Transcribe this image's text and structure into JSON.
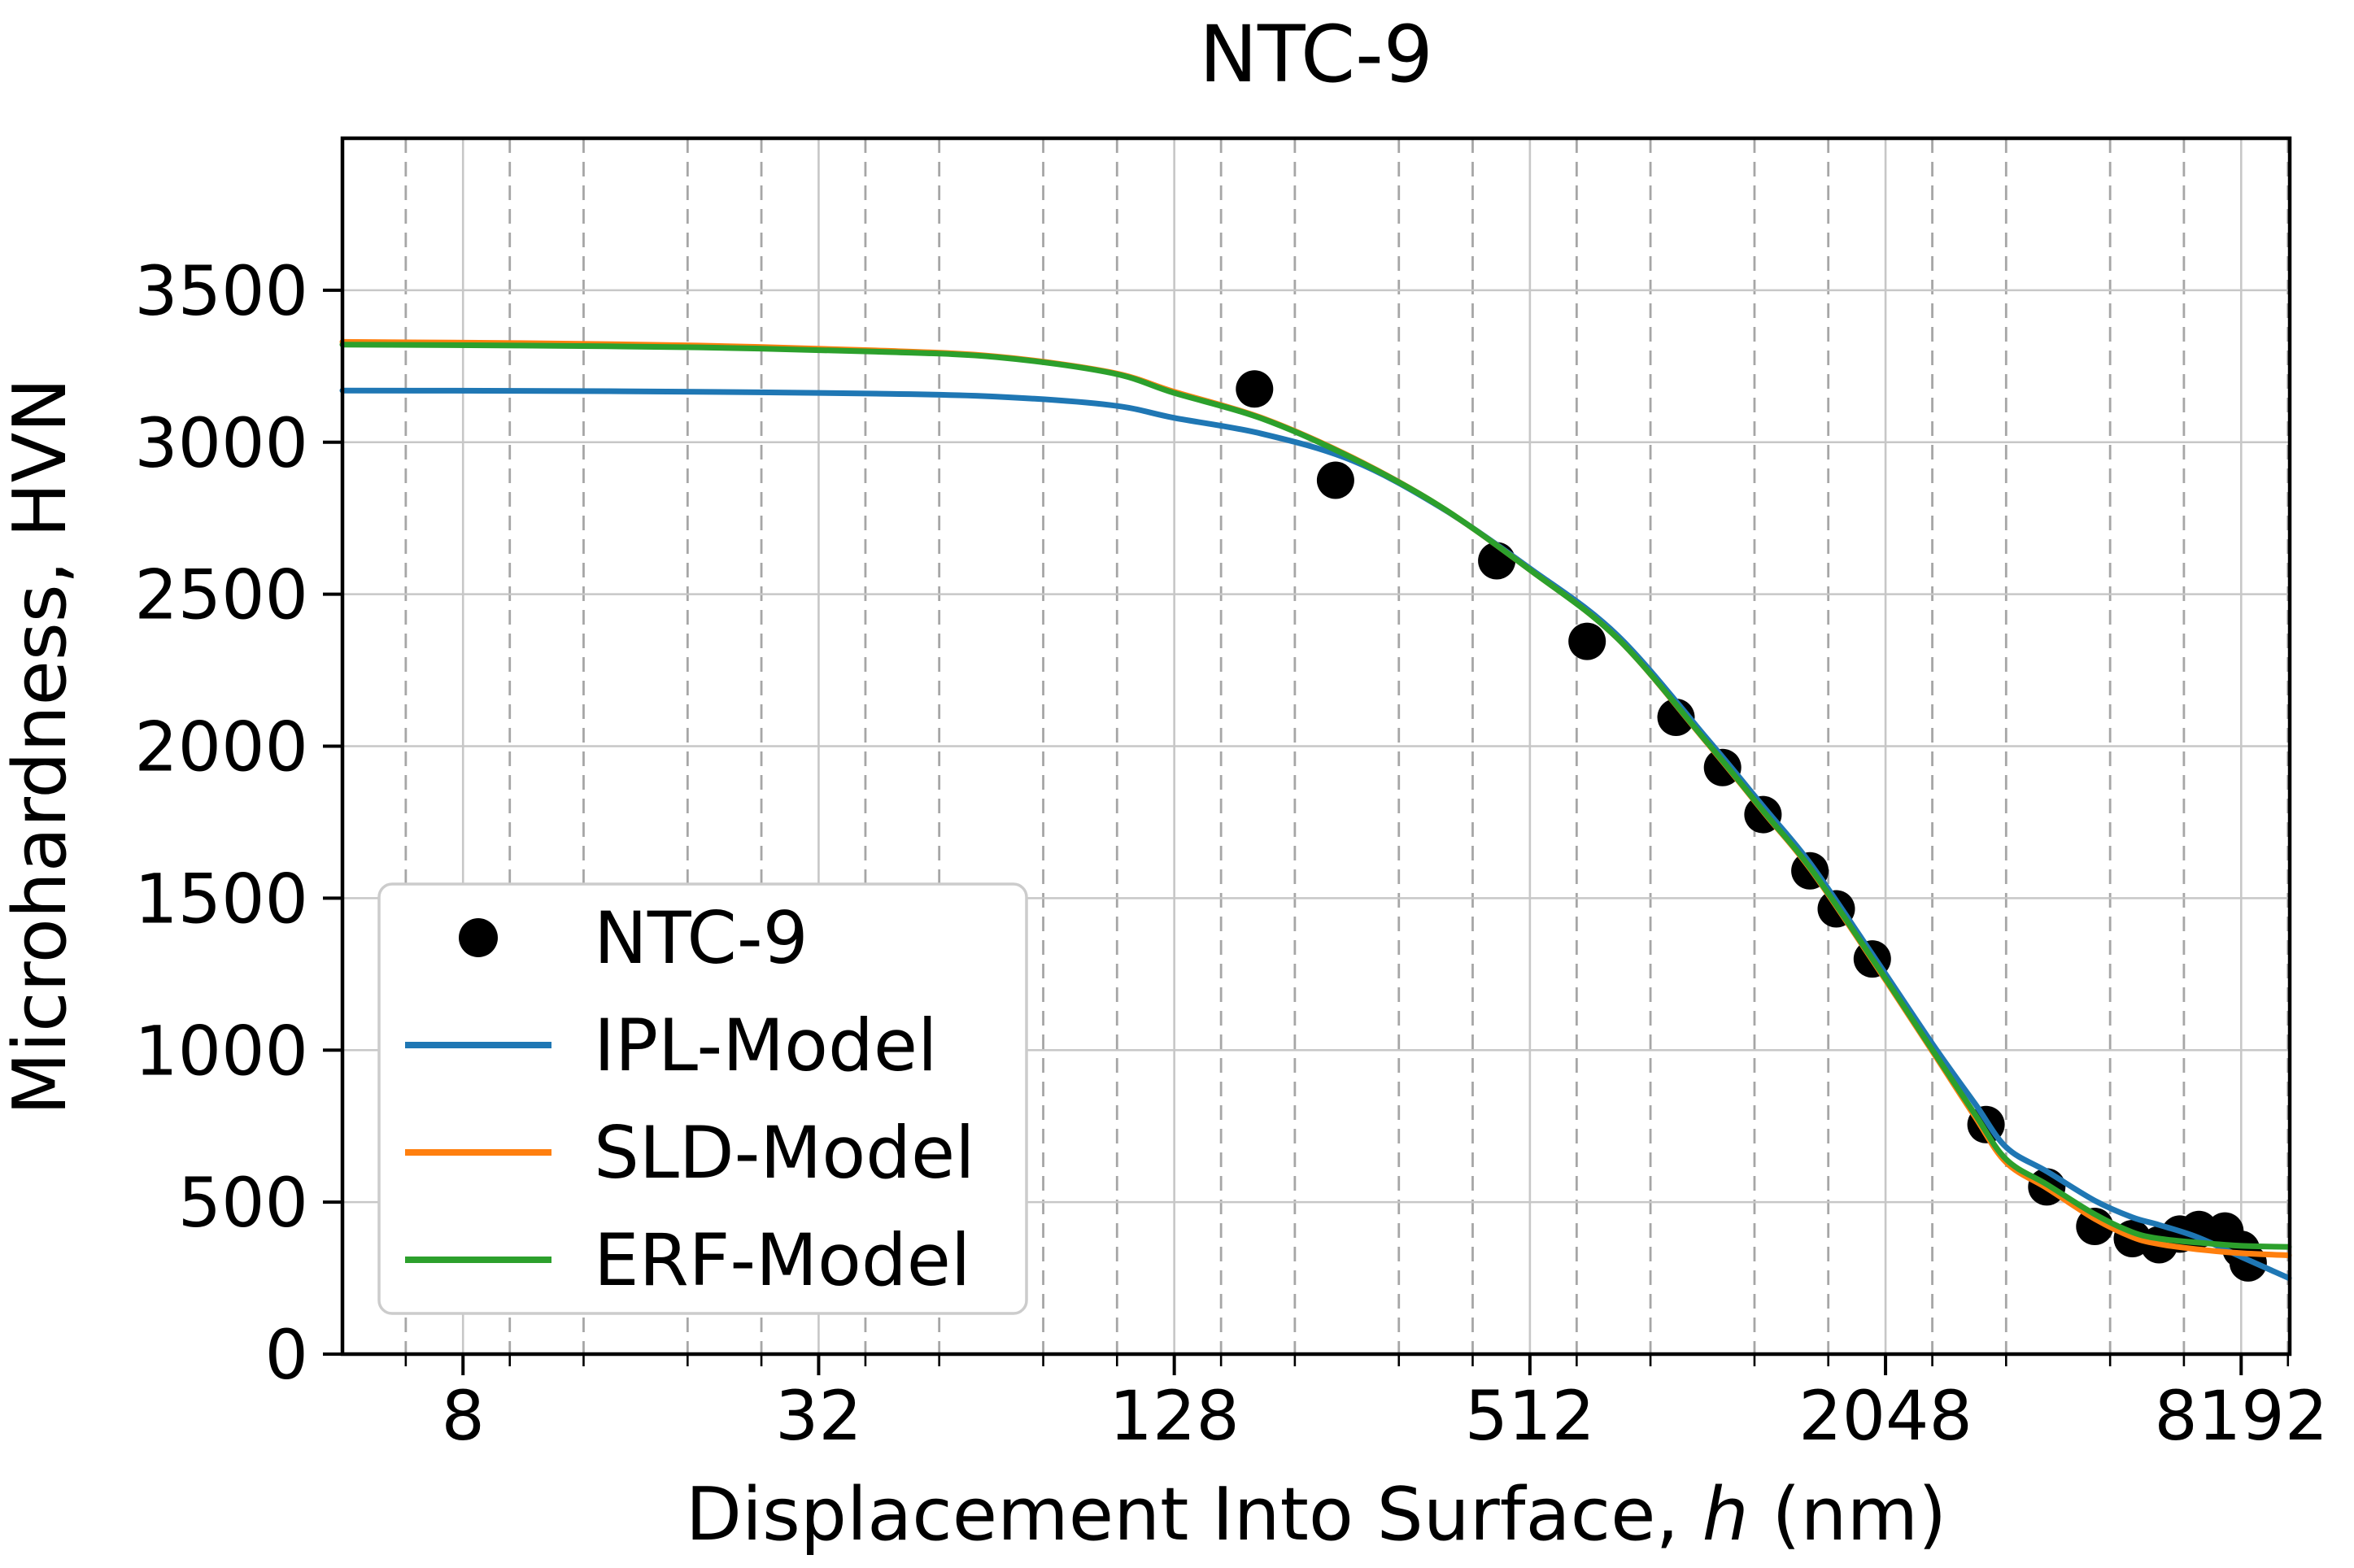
{
  "title": "NTC-9",
  "axes": {
    "ylabel": "Microhardness, HVN",
    "xlabel_prefix": "Displacement Into Surface, ",
    "xlabel_italic": "h",
    "xlabel_suffix": " (nm)",
    "x_tick_labels": [
      "8",
      "32",
      "128",
      "512",
      "2048",
      "8192"
    ],
    "y_tick_labels": [
      "0",
      "500",
      "1000",
      "1500",
      "2000",
      "2500",
      "3000",
      "3500"
    ]
  },
  "legend": {
    "items": [
      {
        "label": "NTC-9",
        "marker": "dot",
        "color": "#000000"
      },
      {
        "label": "IPL-Model",
        "marker": "line",
        "color": "#1f77b4"
      },
      {
        "label": "SLD-Model",
        "marker": "line",
        "color": "#ff7f0e"
      },
      {
        "label": "ERF-Model",
        "marker": "line",
        "color": "#2ca02c"
      }
    ]
  },
  "style": {
    "scatter_color": "#000000",
    "ipl_color": "#1f77b4",
    "sld_color": "#ff7f0e",
    "erf_color": "#2ca02c",
    "major_grid_color": "#c7c7c7",
    "minor_grid_color": "#a6a6a6",
    "frame_color": "#000000",
    "legend_border_color": "#cccccc",
    "legend_fill": "#ffffff"
  },
  "chart_data": {
    "type": "scatter",
    "title": "NTC-9",
    "xlabel": "Displacement Into Surface, h (nm)",
    "ylabel": "Microhardness, HVN",
    "xscale": "log",
    "xlim": [
      5,
      9900
    ],
    "ylim": [
      0,
      4000
    ],
    "x_major_ticks": [
      8,
      32,
      128,
      512,
      2048,
      8192
    ],
    "x_minor_gridlines": [
      6.4,
      9.6,
      12.8,
      19.2,
      25.6,
      38.4,
      51.2,
      76.8,
      102.4,
      153.6,
      204.8,
      307.2,
      409.6,
      614.4,
      819.2,
      1228.8,
      1638.4,
      2457.6,
      3276.8,
      4915.2,
      6553.6,
      9830.4
    ],
    "y_major_ticks": [
      0,
      500,
      1000,
      1500,
      2000,
      2500,
      3000,
      3500
    ],
    "grid": true,
    "legend_position": "lower left",
    "series": [
      {
        "name": "NTC-9",
        "kind": "scatter",
        "points": [
          [
            175,
            3175
          ],
          [
            240,
            2875
          ],
          [
            450,
            2610
          ],
          [
            640,
            2345
          ],
          [
            905,
            2095
          ],
          [
            1085,
            1930
          ],
          [
            1270,
            1775
          ],
          [
            1525,
            1590
          ],
          [
            1690,
            1465
          ],
          [
            1945,
            1300
          ],
          [
            3030,
            755
          ],
          [
            3840,
            550
          ],
          [
            4630,
            420
          ],
          [
            5360,
            380
          ],
          [
            5950,
            360
          ],
          [
            6450,
            395
          ],
          [
            6950,
            410
          ],
          [
            7690,
            405
          ],
          [
            8190,
            345
          ],
          [
            8420,
            300
          ]
        ]
      },
      {
        "name": "IPL-Model",
        "kind": "line",
        "points": [
          [
            5,
            3170
          ],
          [
            10,
            3169
          ],
          [
            20,
            3166
          ],
          [
            40,
            3160
          ],
          [
            64,
            3150
          ],
          [
            100,
            3122
          ],
          [
            128,
            3080
          ],
          [
            180,
            3028
          ],
          [
            256,
            2940
          ],
          [
            360,
            2788
          ],
          [
            512,
            2585
          ],
          [
            720,
            2365
          ],
          [
            1024,
            2022
          ],
          [
            1280,
            1795
          ],
          [
            1530,
            1612
          ],
          [
            1950,
            1312
          ],
          [
            2460,
            1020
          ],
          [
            2900,
            825
          ],
          [
            3280,
            680
          ],
          [
            3850,
            600
          ],
          [
            4630,
            505
          ],
          [
            5360,
            450
          ],
          [
            5950,
            425
          ],
          [
            6900,
            385
          ],
          [
            8192,
            320
          ],
          [
            9870,
            250
          ]
        ]
      },
      {
        "name": "SLD-Model",
        "kind": "line",
        "points": [
          [
            5,
            3330
          ],
          [
            10,
            3326
          ],
          [
            20,
            3318
          ],
          [
            40,
            3302
          ],
          [
            64,
            3282
          ],
          [
            100,
            3230
          ],
          [
            128,
            3166
          ],
          [
            180,
            3080
          ],
          [
            256,
            2950
          ],
          [
            360,
            2790
          ],
          [
            512,
            2580
          ],
          [
            720,
            2355
          ],
          [
            1024,
            2008
          ],
          [
            1280,
            1778
          ],
          [
            1530,
            1594
          ],
          [
            1950,
            1293
          ],
          [
            2460,
            995
          ],
          [
            2900,
            782
          ],
          [
            3280,
            630
          ],
          [
            3850,
            545
          ],
          [
            4630,
            445
          ],
          [
            5360,
            385
          ],
          [
            5950,
            362
          ],
          [
            6900,
            345
          ],
          [
            8192,
            332
          ],
          [
            9870,
            325
          ]
        ]
      },
      {
        "name": "ERF-Model",
        "kind": "line",
        "points": [
          [
            5,
            3321
          ],
          [
            10,
            3318
          ],
          [
            20,
            3312
          ],
          [
            40,
            3298
          ],
          [
            64,
            3280
          ],
          [
            100,
            3228
          ],
          [
            128,
            3162
          ],
          [
            180,
            3078
          ],
          [
            256,
            2948
          ],
          [
            360,
            2790
          ],
          [
            512,
            2580
          ],
          [
            720,
            2355
          ],
          [
            1024,
            2010
          ],
          [
            1280,
            1780
          ],
          [
            1530,
            1597
          ],
          [
            1950,
            1297
          ],
          [
            2460,
            1000
          ],
          [
            2900,
            790
          ],
          [
            3280,
            640
          ],
          [
            3850,
            557
          ],
          [
            4630,
            460
          ],
          [
            5360,
            401
          ],
          [
            5950,
            380
          ],
          [
            6900,
            367
          ],
          [
            8192,
            356
          ],
          [
            9870,
            353
          ]
        ]
      }
    ]
  }
}
